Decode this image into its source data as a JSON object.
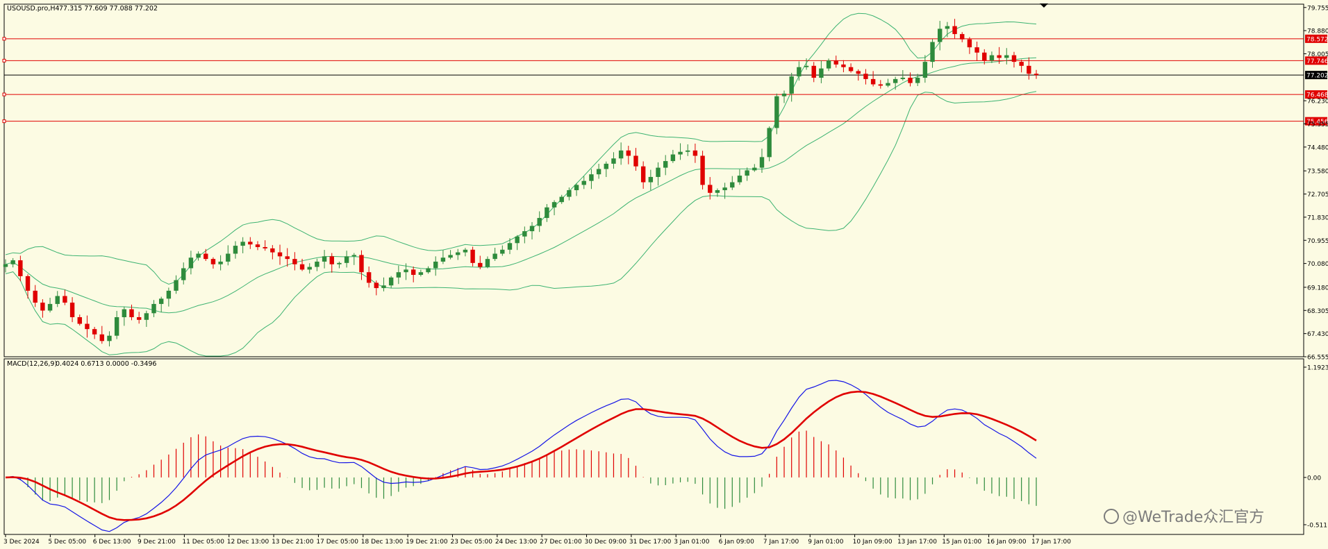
{
  "header": {
    "symbol": "USOUSD.pro,H4",
    "ohlc": "77.315 77.609 77.088 77.202"
  },
  "macd_header": {
    "title": "MACD(12,26,9)",
    "values": "0.4024 0.6713 0.0000 -0.3496"
  },
  "watermark": "@WeTrade众汇官方",
  "colors": {
    "background": "#fcfbe3",
    "bull": "#2e8b3c",
    "bear": "#e00000",
    "band": "#3cb371",
    "level": "#e00000",
    "macd_line": "#1414e6",
    "signal_line": "#e00000"
  },
  "chart_data": [
    {
      "type": "candlestick",
      "title": "USOUSD.pro,H4",
      "ylim": [
        66.555,
        79.88
      ],
      "price_ticks": [
        "79.755",
        "78.880",
        "78.005",
        "76.230",
        "75.355",
        "74.480",
        "73.580",
        "72.705",
        "71.830",
        "70.955",
        "70.080",
        "69.180",
        "68.305",
        "67.430",
        "66.555"
      ],
      "time_ticks": [
        "3 Dec 2024",
        "5 Dec 05:00",
        "6 Dec 13:00",
        "9 Dec 21:00",
        "11 Dec 05:00",
        "12 Dec 13:00",
        "13 Dec 21:00",
        "17 Dec 05:00",
        "18 Dec 13:00",
        "19 Dec 21:00",
        "23 Dec 05:00",
        "24 Dec 13:00",
        "27 Dec 01:00",
        "30 Dec 09:00",
        "31 Dec 17:00",
        "3 Jan 01:00",
        "6 Jan 09:00",
        "7 Jan 17:00",
        "9 Jan 01:00",
        "10 Jan 09:00",
        "13 Jan 17:00",
        "15 Jan 01:00",
        "16 Jan 09:00",
        "17 Jan 17:00"
      ],
      "levels": [
        {
          "label": "78.572",
          "value": 78.572
        },
        {
          "label": "77.746",
          "value": 77.746
        },
        {
          "label": "76.468",
          "value": 76.468
        },
        {
          "label": "75.456",
          "value": 75.456
        }
      ],
      "current_price": {
        "label": "77.202",
        "value": 77.202
      },
      "price_path": [
        70.05,
        70.2,
        69.6,
        69.05,
        68.6,
        68.3,
        68.55,
        68.85,
        68.6,
        68.05,
        67.8,
        67.6,
        67.4,
        67.15,
        67.35,
        68.05,
        68.35,
        68.05,
        67.95,
        68.2,
        68.55,
        68.75,
        69.05,
        69.45,
        69.9,
        70.3,
        70.45,
        70.25,
        70.05,
        70.15,
        70.45,
        70.75,
        70.9,
        70.8,
        70.7,
        70.65,
        70.5,
        70.35,
        70.25,
        70.05,
        69.85,
        69.95,
        70.15,
        70.35,
        70.05,
        70.1,
        70.35,
        70.4,
        69.75,
        69.35,
        69.15,
        69.25,
        69.55,
        69.75,
        69.85,
        69.65,
        69.75,
        69.9,
        70.15,
        70.3,
        70.4,
        70.5,
        70.6,
        70.1,
        69.95,
        70.25,
        70.45,
        70.6,
        70.85,
        71.1,
        71.3,
        71.5,
        71.8,
        72.2,
        72.4,
        72.6,
        72.85,
        73.05,
        73.2,
        73.45,
        73.65,
        73.85,
        74.05,
        74.35,
        74.15,
        73.75,
        73.15,
        73.35,
        73.7,
        73.95,
        74.2,
        74.3,
        74.35,
        74.15,
        73.05,
        72.75,
        72.85,
        72.95,
        73.15,
        73.4,
        73.6,
        73.7,
        74.1,
        75.2,
        76.4,
        76.5,
        77.15,
        77.5,
        77.55,
        77.1,
        77.45,
        77.75,
        77.6,
        77.5,
        77.35,
        77.25,
        77.05,
        76.85,
        76.8,
        76.9,
        77.05,
        77.1,
        76.9,
        77.1,
        77.7,
        78.45,
        78.95,
        79.05,
        78.75,
        78.55,
        78.25,
        78.05,
        77.75,
        77.95,
        77.85,
        77.95,
        77.7,
        77.55,
        77.25,
        77.2
      ],
      "bollinger": {
        "period": 20,
        "deviation": 2
      }
    },
    {
      "type": "macd",
      "title": "MACD(12,26,9)",
      "values_printed": "0.4024 0.6713 0.0000 -0.3496",
      "ylim": [
        -0.511,
        1.1923
      ],
      "ticks": [
        "1.1923",
        "0.00",
        "-0.511"
      ]
    }
  ]
}
